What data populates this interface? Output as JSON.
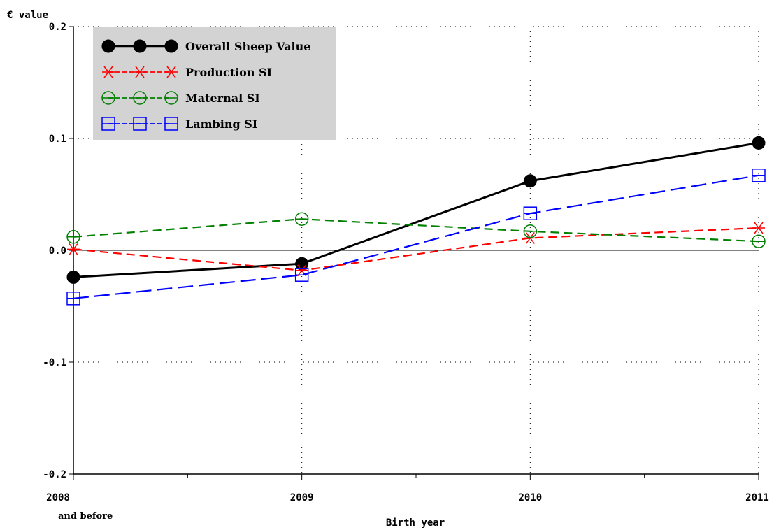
{
  "chart_data": {
    "type": "line",
    "ylabel": "€ value",
    "xlabel": "Birth year",
    "categories": [
      "2008",
      "2009",
      "2010",
      "2011"
    ],
    "x_sublabel": "and before",
    "ylim": [
      -0.2,
      0.2
    ],
    "yticks": [
      "-0.2",
      "-0.1",
      "0.0",
      "0.1",
      "0.2"
    ],
    "grid": true,
    "legend_position": "top-left",
    "series": [
      {
        "name": "Overall Sheep Value",
        "color": "#000000",
        "marker": "filled-circle",
        "line": "solid",
        "values": [
          -0.024,
          -0.012,
          0.062,
          0.096
        ]
      },
      {
        "name": "Production SI",
        "color": "#ff0000",
        "marker": "star",
        "line": "dashed",
        "values": [
          0.001,
          -0.018,
          0.011,
          0.02
        ]
      },
      {
        "name": "Maternal SI",
        "color": "#008000",
        "marker": "circle",
        "line": "dashed",
        "values": [
          0.012,
          0.028,
          0.017,
          0.008
        ]
      },
      {
        "name": "Lambing SI",
        "color": "#0000ff",
        "marker": "square",
        "line": "long-dashed",
        "values": [
          -0.043,
          -0.022,
          0.033,
          0.067
        ]
      }
    ]
  }
}
